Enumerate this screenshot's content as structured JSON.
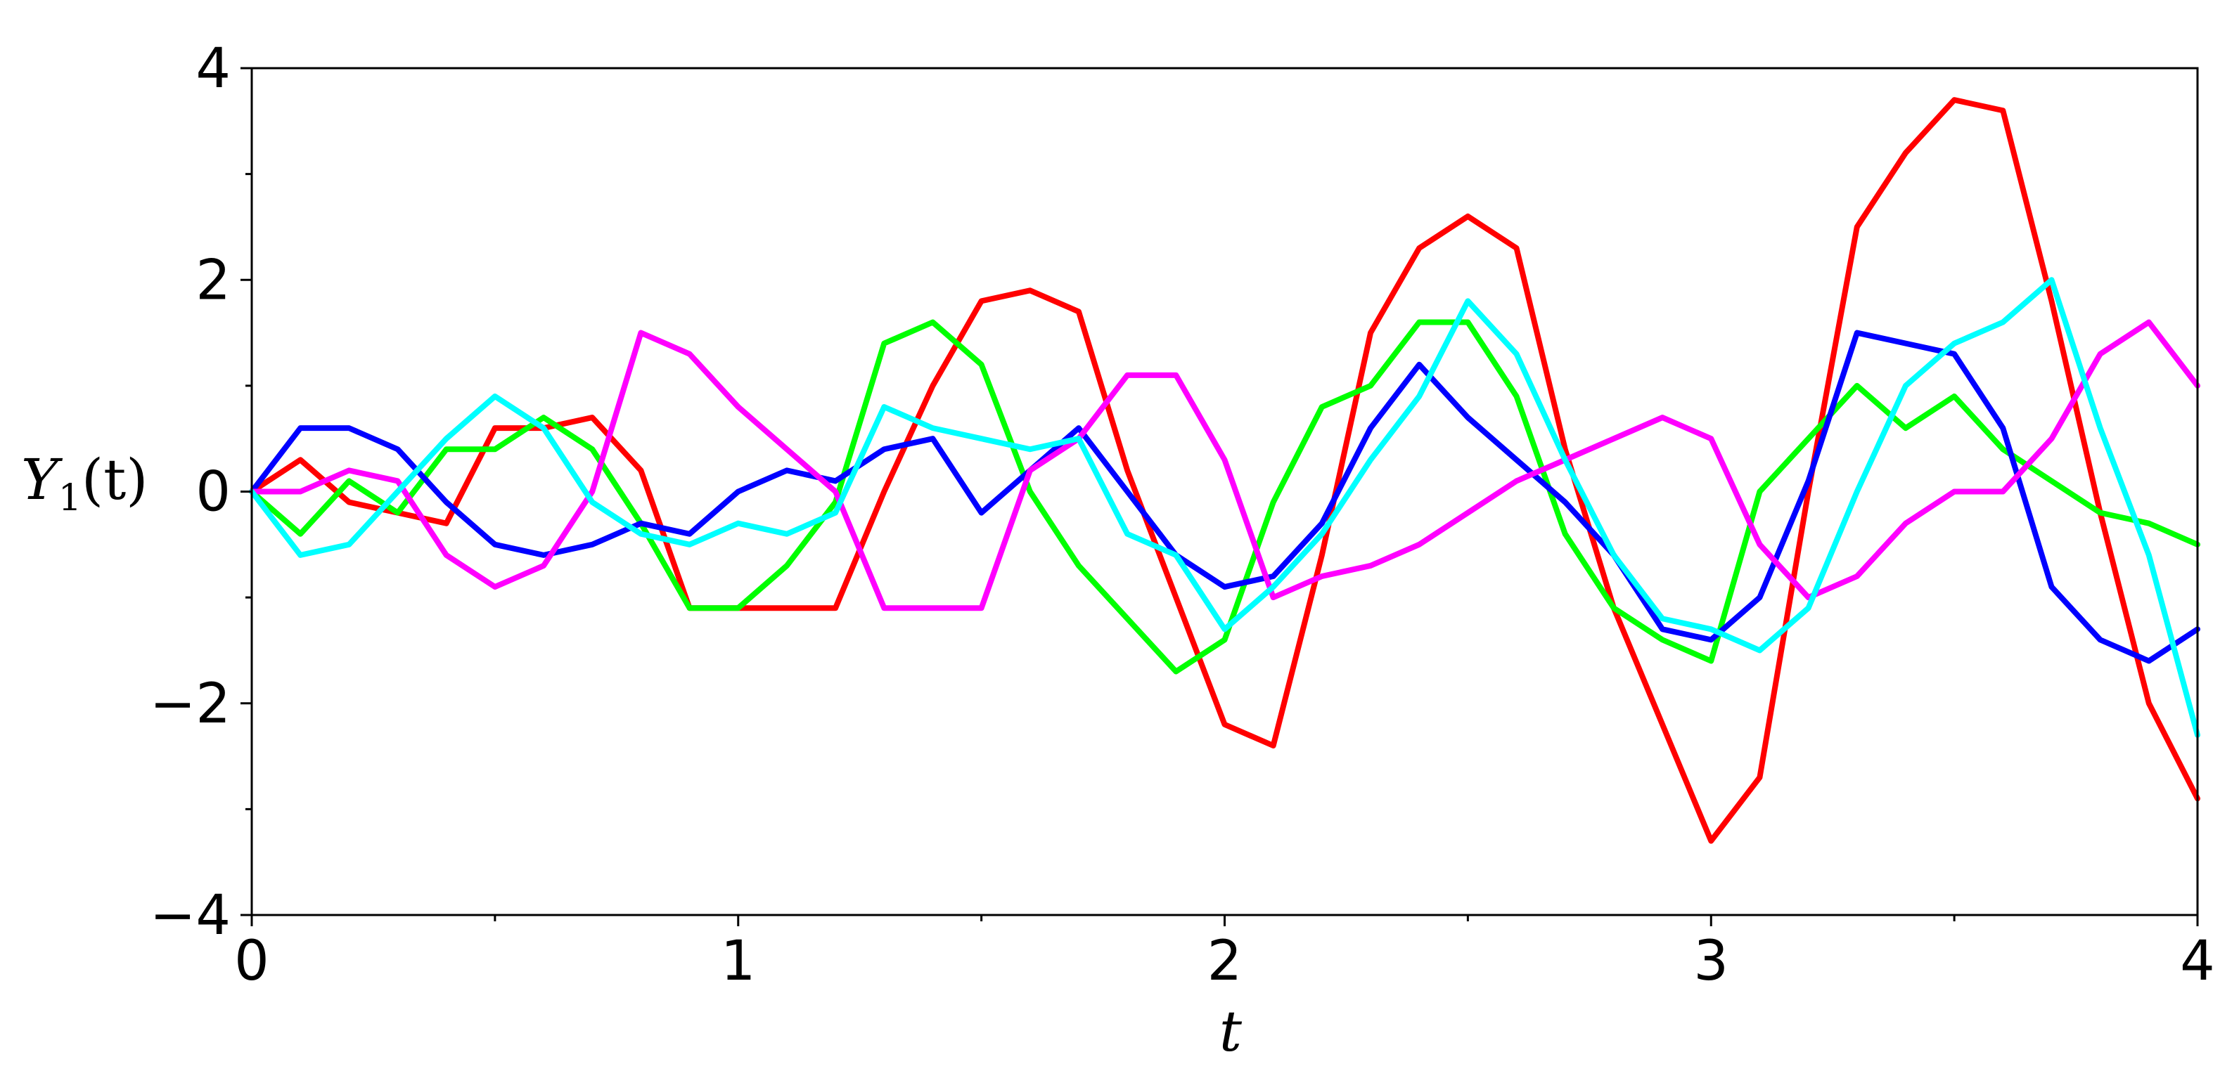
{
  "chart_data": {
    "type": "line",
    "title": "",
    "xlabel": "t",
    "ylabel": {
      "base": "Y",
      "sub": "1",
      "arg": "(t)"
    },
    "xlim": [
      0,
      4
    ],
    "ylim": [
      -4,
      4
    ],
    "x_ticks": [
      0,
      1,
      2,
      3,
      4
    ],
    "x_tick_labels": [
      "0",
      "1",
      "2",
      "3",
      "4"
    ],
    "x_minor_ticks": [
      0.5,
      1.5,
      2.5,
      3.5
    ],
    "y_ticks": [
      -4,
      -2,
      0,
      2,
      4
    ],
    "y_tick_labels": [
      "−4",
      "−2",
      "0",
      "2",
      "4"
    ],
    "y_minor_ticks": [
      -3,
      -1,
      1,
      3
    ],
    "grid": false,
    "legend": "none",
    "x": [
      0,
      0.1,
      0.2,
      0.3,
      0.4,
      0.5,
      0.6,
      0.7,
      0.8,
      0.9,
      1.0,
      1.1,
      1.2,
      1.3,
      1.4,
      1.5,
      1.6,
      1.7,
      1.8,
      1.9,
      2.0,
      2.1,
      2.2,
      2.3,
      2.4,
      2.5,
      2.6,
      2.7,
      2.8,
      2.9,
      3.0,
      3.1,
      3.2,
      3.3,
      3.4,
      3.5,
      3.6,
      3.7,
      3.8,
      3.9,
      4.0
    ],
    "series": [
      {
        "color": "#ff0000",
        "values": [
          0,
          0.3,
          -0.1,
          -0.2,
          -0.3,
          0.6,
          0.6,
          0.7,
          0.2,
          -1.1,
          -1.1,
          -1.1,
          -1.1,
          0.0,
          1.0,
          1.8,
          1.9,
          1.7,
          0.2,
          -1.0,
          -2.2,
          -2.4,
          -0.6,
          1.5,
          2.3,
          2.6,
          2.3,
          0.4,
          -1.1,
          -2.2,
          -3.3,
          -2.7,
          0.0,
          2.5,
          3.2,
          3.7,
          3.6,
          1.8,
          -0.2,
          -2.0,
          -2.9
        ]
      },
      {
        "color": "#00ff00",
        "values": [
          0,
          -0.4,
          0.1,
          -0.2,
          0.4,
          0.4,
          0.7,
          0.4,
          -0.3,
          -1.1,
          -1.1,
          -0.7,
          -0.1,
          1.4,
          1.6,
          1.2,
          0.0,
          -0.7,
          -1.2,
          -1.7,
          -1.4,
          -0.1,
          0.8,
          1.0,
          1.6,
          1.6,
          0.9,
          -0.4,
          -1.1,
          -1.4,
          -1.6,
          0.0,
          0.5,
          1.0,
          0.6,
          0.9,
          0.4,
          0.1,
          -0.2,
          -0.3,
          -0.5
        ]
      },
      {
        "color": "#0000ff",
        "values": [
          0,
          0.6,
          0.6,
          0.4,
          -0.1,
          -0.5,
          -0.6,
          -0.5,
          -0.3,
          -0.4,
          0.0,
          0.2,
          0.1,
          0.4,
          0.5,
          -0.2,
          0.2,
          0.6,
          0.0,
          -0.6,
          -0.9,
          -0.8,
          -0.3,
          0.6,
          1.2,
          0.7,
          0.3,
          -0.1,
          -0.6,
          -1.3,
          -1.4,
          -1.0,
          0.1,
          1.5,
          1.4,
          1.3,
          0.6,
          -0.9,
          -1.4,
          -1.6,
          -1.3
        ]
      },
      {
        "color": "#ff00ff",
        "values": [
          0,
          0.0,
          0.2,
          0.1,
          -0.6,
          -0.9,
          -0.7,
          0.0,
          1.5,
          1.3,
          0.8,
          0.4,
          0.0,
          -1.1,
          -1.1,
          -1.1,
          0.2,
          0.5,
          1.1,
          1.1,
          0.3,
          -1.0,
          -0.8,
          -0.7,
          -0.5,
          -0.2,
          0.1,
          0.3,
          0.5,
          0.7,
          0.5,
          -0.5,
          -1.0,
          -0.8,
          -0.3,
          0.0,
          0.0,
          0.5,
          1.3,
          1.6,
          1.0
        ]
      },
      {
        "color": "#00ffff",
        "values": [
          0,
          -0.6,
          -0.5,
          0.0,
          0.5,
          0.9,
          0.6,
          -0.1,
          -0.4,
          -0.5,
          -0.3,
          -0.4,
          -0.2,
          0.8,
          0.6,
          0.5,
          0.4,
          0.5,
          -0.4,
          -0.6,
          -1.3,
          -0.9,
          -0.4,
          0.3,
          0.9,
          1.8,
          1.3,
          0.3,
          -0.6,
          -1.2,
          -1.3,
          -1.5,
          -1.1,
          0.0,
          1.0,
          1.4,
          1.6,
          2.0,
          0.6,
          -0.6,
          -2.3
        ]
      }
    ]
  }
}
